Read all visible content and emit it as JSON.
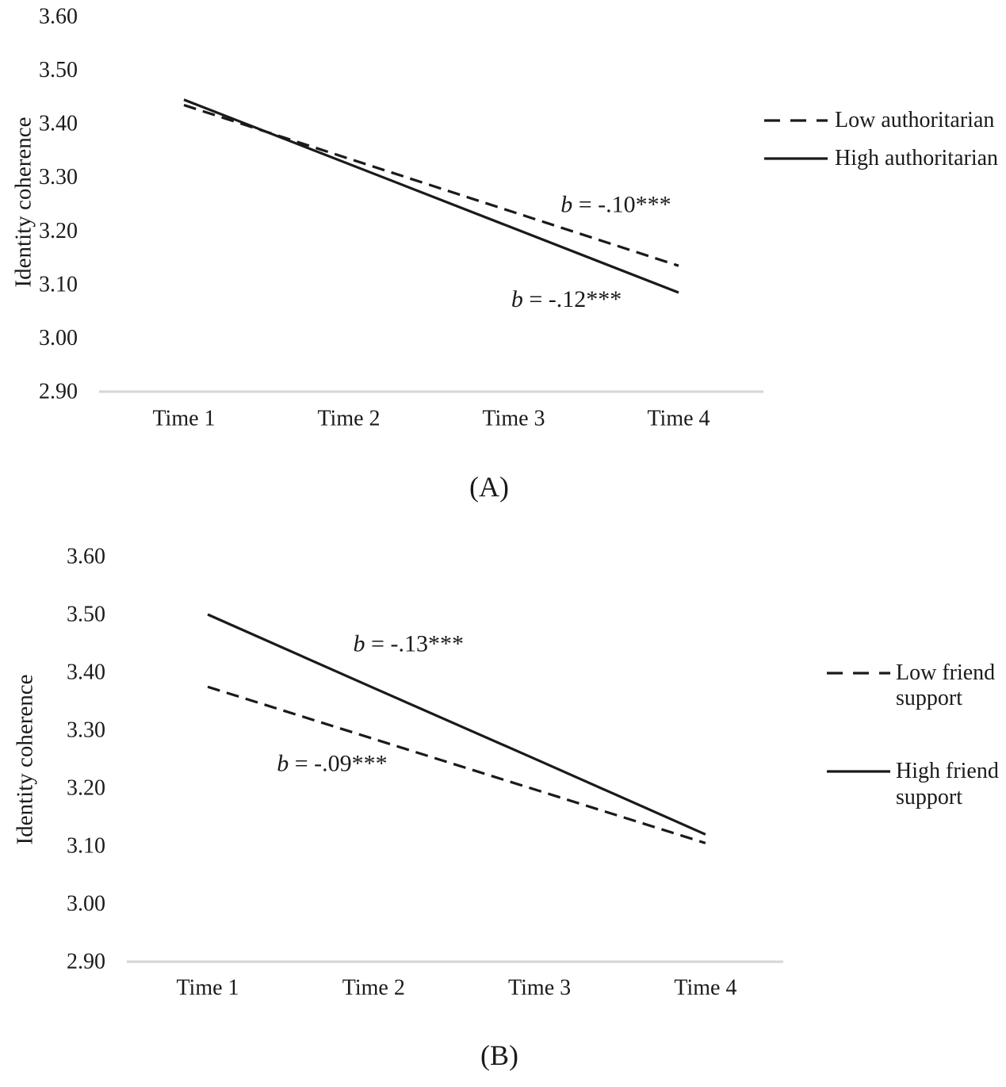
{
  "figure": {
    "background": "#ffffff",
    "line_color": "#1a1a1a",
    "baseline_color": "#d6d6d6"
  },
  "chart_data": [
    {
      "type": "line",
      "panel": "A",
      "caption": "(A)",
      "title": "",
      "xlabel": "",
      "ylabel": "Identity coherence",
      "categories": [
        "Time 1",
        "Time 2",
        "Time 3",
        "Time 4"
      ],
      "y_ticks": [
        "3.60",
        "3.50",
        "3.40",
        "3.30",
        "3.20",
        "3.10",
        "3.00",
        "2.90"
      ],
      "ylim": [
        2.9,
        3.6
      ],
      "grid": false,
      "legend_position": "right",
      "series": [
        {
          "name": "Low authoritarian",
          "style": "dashed",
          "values": [
            3.435,
            3.335,
            3.235,
            3.135
          ]
        },
        {
          "name": "High authoritarian",
          "style": "solid",
          "values": [
            3.445,
            3.325,
            3.205,
            3.085
          ]
        }
      ],
      "annotations": [
        {
          "text": "b = -.10***",
          "series": "Low authoritarian",
          "x": 3.62,
          "y": 3.25
        },
        {
          "text": "b = -.12***",
          "series": "High authoritarian",
          "x": 3.32,
          "y": 3.073
        }
      ]
    },
    {
      "type": "line",
      "panel": "B",
      "caption": "(B)",
      "title": "",
      "xlabel": "",
      "ylabel": "Identity coherence",
      "categories": [
        "Time 1",
        "Time 2",
        "Time 3",
        "Time 4"
      ],
      "y_ticks": [
        "3.60",
        "3.50",
        "3.40",
        "3.30",
        "3.20",
        "3.10",
        "3.00",
        "2.90"
      ],
      "ylim": [
        2.9,
        3.6
      ],
      "grid": false,
      "legend_position": "right",
      "series": [
        {
          "name": "Low friend support",
          "style": "dashed",
          "values": [
            3.375,
            3.285,
            3.195,
            3.105
          ]
        },
        {
          "name": "High friend support",
          "style": "solid",
          "values": [
            3.5,
            3.373,
            3.247,
            3.12
          ]
        }
      ],
      "annotations": [
        {
          "text": "b = -.13***",
          "series": "High friend support",
          "x": 2.21,
          "y": 3.45
        },
        {
          "text": "b = -.09***",
          "series": "Low friend support",
          "x": 1.75,
          "y": 3.243
        }
      ]
    }
  ]
}
